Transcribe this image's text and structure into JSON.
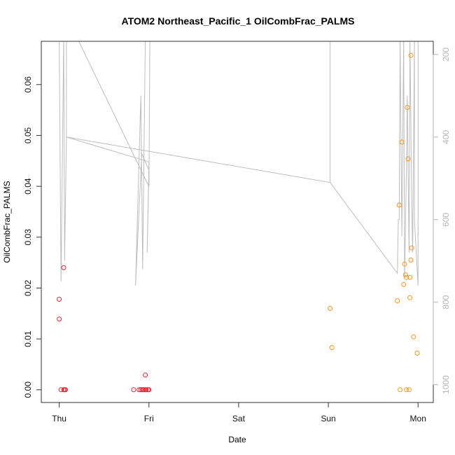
{
  "chart_data": {
    "type": "scatter",
    "title": "ATOM2 Northeast_Pacific_1 OilCombFrac_PALMS",
    "xlabel": "Date",
    "ylabel": "OilCombFrac_PALMS",
    "x_ticks": [
      "Thu",
      "Fri",
      "Sat",
      "Sun",
      "Mon"
    ],
    "x_range_days": [
      -0.2,
      4.17
    ],
    "y_ticks": [
      "0.00",
      "0.01",
      "0.02",
      "0.03",
      "0.04",
      "0.05",
      "0.06"
    ],
    "ylim": [
      -0.0025,
      0.0685
    ],
    "y2_ticks": [
      "200",
      "400",
      "600",
      "800",
      "1000"
    ],
    "y2lim": [
      1043,
      168
    ],
    "grid": false,
    "legend": "none",
    "colors": {
      "series1": "#e8202a",
      "series2": "#f5961e",
      "altitude": "#bdbdbd",
      "axis": "#333333",
      "secondary_axis": "#b5b5b5"
    },
    "series": [
      {
        "color": "#e8202a",
        "points": [
          [
            0.0,
            0.0178
          ],
          [
            0.0,
            0.0139
          ],
          [
            0.05,
            0.024
          ],
          [
            0.02,
            0.0
          ],
          [
            0.05,
            0.0
          ],
          [
            0.06,
            0.0
          ],
          [
            0.07,
            0.0
          ],
          [
            0.83,
            0.0
          ],
          [
            0.89,
            0.0
          ],
          [
            0.91,
            0.0
          ],
          [
            0.93,
            0.0
          ],
          [
            0.94,
            0.0
          ],
          [
            0.96,
            0.0
          ],
          [
            0.97,
            0.0
          ],
          [
            0.99,
            0.0
          ],
          [
            1.0,
            0.0
          ],
          [
            0.96,
            0.0029
          ]
        ]
      },
      {
        "color": "#f5961e",
        "points": [
          [
            3.02,
            0.016
          ],
          [
            3.04,
            0.0083
          ],
          [
            3.77,
            0.0175
          ],
          [
            3.79,
            0.0363
          ],
          [
            3.8,
            0.0
          ],
          [
            3.82,
            0.0487
          ],
          [
            3.84,
            0.0207
          ],
          [
            3.85,
            0.0247
          ],
          [
            3.86,
            0.0226
          ],
          [
            3.87,
            0.0221
          ],
          [
            3.88,
            0.0555
          ],
          [
            3.89,
            0.0454
          ],
          [
            3.9,
            0.0
          ],
          [
            3.91,
            0.0221
          ],
          [
            3.91,
            0.0181
          ],
          [
            3.92,
            0.0657
          ],
          [
            3.92,
            0.0255
          ],
          [
            3.93,
            0.0279
          ],
          [
            3.95,
            0.0104
          ],
          [
            3.99,
            0.0072
          ],
          [
            3.87,
            0.0
          ]
        ]
      }
    ],
    "altitude_trace": [
      [
        0.0,
        160
      ],
      [
        0.02,
        750
      ],
      [
        0.05,
        160
      ],
      [
        0.06,
        700
      ],
      [
        0.08,
        400
      ],
      [
        0.08,
        160
      ],
      [
        0.2,
        160
      ],
      [
        1.0,
        520
      ],
      [
        1.01,
        160
      ],
      [
        0.96,
        160
      ],
      [
        0.93,
        720
      ],
      [
        0.91,
        300
      ],
      [
        0.85,
        760
      ],
      [
        0.92,
        440
      ],
      [
        1.0,
        480
      ],
      [
        0.98,
        680
      ],
      [
        1.0,
        460
      ],
      [
        0.08,
        400
      ],
      [
        3.02,
        510
      ],
      [
        3.02,
        160
      ],
      [
        3.02,
        510
      ],
      [
        3.77,
        730
      ],
      [
        3.78,
        600
      ],
      [
        3.79,
        600
      ],
      [
        3.8,
        160
      ],
      [
        3.82,
        640
      ],
      [
        3.84,
        160
      ],
      [
        3.85,
        740
      ],
      [
        3.87,
        480
      ],
      [
        3.88,
        300
      ],
      [
        3.9,
        680
      ],
      [
        3.91,
        160
      ],
      [
        3.93,
        560
      ],
      [
        3.94,
        680
      ],
      [
        3.96,
        160
      ],
      [
        3.96,
        600
      ],
      [
        4.0,
        760
      ],
      [
        4.0,
        160
      ]
    ]
  }
}
